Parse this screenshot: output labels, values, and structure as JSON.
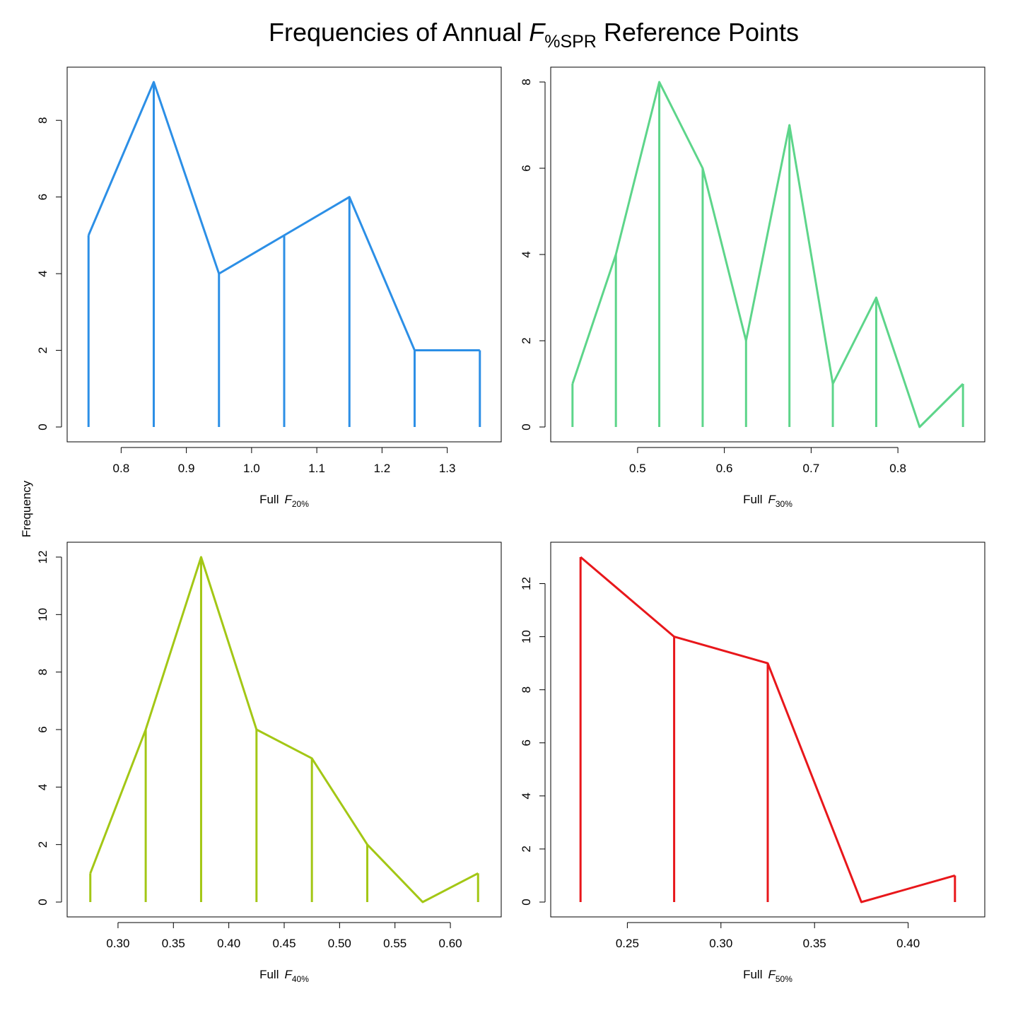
{
  "figure": {
    "title_prefix": "Frequencies of Annual ",
    "title_var": "F",
    "title_sub": "%SPR",
    "title_suffix": " Reference Points",
    "shared_ylabel": "Frequency"
  },
  "chart_data": [
    {
      "type": "line",
      "xlabel_prefix": "Full",
      "xlabel_var": "F",
      "xlabel_sub": "20%",
      "color": "#2C8FE6",
      "x": [
        0.75,
        0.85,
        0.95,
        1.05,
        1.15,
        1.25,
        1.35
      ],
      "values": [
        5,
        9,
        4,
        5,
        6,
        2,
        2
      ],
      "xlim": [
        0.74,
        1.36
      ],
      "ylim": [
        0,
        9
      ],
      "xticks": [
        0.8,
        0.9,
        1.0,
        1.1,
        1.2,
        1.3
      ],
      "xtick_labels": [
        "0.8",
        "0.9",
        "1.0",
        "1.1",
        "1.2",
        "1.3"
      ],
      "yticks": [
        0,
        2,
        4,
        6,
        8
      ],
      "ytick_labels": [
        "0",
        "2",
        "4",
        "6",
        "8"
      ]
    },
    {
      "type": "line",
      "xlabel_prefix": "Full",
      "xlabel_var": "F",
      "xlabel_sub": "30%",
      "color": "#5DD58A",
      "x": [
        0.425,
        0.475,
        0.525,
        0.575,
        0.625,
        0.675,
        0.725,
        0.775,
        0.825,
        0.875
      ],
      "values": [
        1,
        4,
        8,
        6,
        2,
        7,
        1,
        3,
        0,
        1
      ],
      "xlim": [
        0.417,
        0.883
      ],
      "ylim": [
        0,
        8
      ],
      "xticks": [
        0.5,
        0.6,
        0.7,
        0.8
      ],
      "xtick_labels": [
        "0.5",
        "0.6",
        "0.7",
        "0.8"
      ],
      "yticks": [
        0,
        2,
        4,
        6,
        8
      ],
      "ytick_labels": [
        "0",
        "2",
        "4",
        "6",
        "8"
      ]
    },
    {
      "type": "line",
      "xlabel_prefix": "Full",
      "xlabel_var": "F",
      "xlabel_sub": "40%",
      "color": "#A3C715",
      "x": [
        0.275,
        0.325,
        0.375,
        0.425,
        0.475,
        0.525,
        0.575,
        0.625
      ],
      "values": [
        1,
        6,
        12,
        6,
        5,
        2,
        0,
        1
      ],
      "xlim": [
        0.2675,
        0.6325
      ],
      "ylim": [
        0,
        12
      ],
      "xticks": [
        0.3,
        0.35,
        0.4,
        0.45,
        0.5,
        0.55,
        0.6
      ],
      "xtick_labels": [
        "0.30",
        "0.35",
        "0.40",
        "0.45",
        "0.50",
        "0.55",
        "0.60"
      ],
      "yticks": [
        0,
        2,
        4,
        6,
        8,
        10,
        12
      ],
      "ytick_labels": [
        "0",
        "2",
        "4",
        "6",
        "8",
        "10",
        "12"
      ]
    },
    {
      "type": "line",
      "xlabel_prefix": "Full",
      "xlabel_var": "F",
      "xlabel_sub": "50%",
      "color": "#E8171B",
      "x": [
        0.225,
        0.275,
        0.325,
        0.375,
        0.425
      ],
      "values": [
        13,
        10,
        9,
        0,
        1
      ],
      "xlim": [
        0.217,
        0.433
      ],
      "ylim": [
        0,
        13
      ],
      "xticks": [
        0.25,
        0.3,
        0.35,
        0.4
      ],
      "xtick_labels": [
        "0.25",
        "0.30",
        "0.35",
        "0.40"
      ],
      "yticks": [
        0,
        2,
        4,
        6,
        8,
        10,
        12
      ],
      "ytick_labels": [
        "0",
        "2",
        "4",
        "6",
        "8",
        "10",
        "12"
      ]
    }
  ]
}
